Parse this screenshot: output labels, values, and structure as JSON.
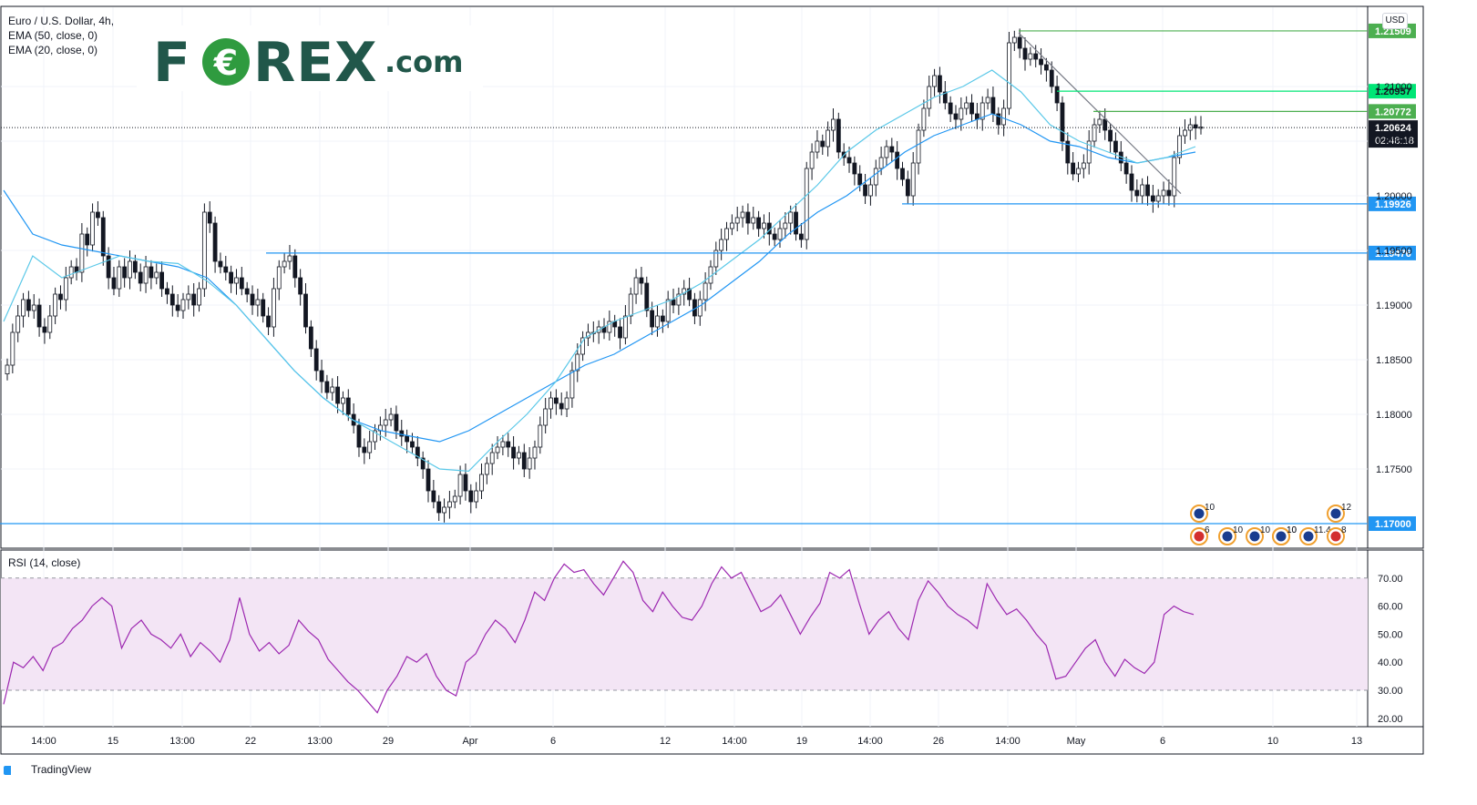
{
  "legend": {
    "symbol": "Euro / U.S. Dollar, 4h,",
    "ema50": "EMA (50, close, 0)",
    "ema20": "EMA (20, close, 0)"
  },
  "logo": {
    "brand_left": "F",
    "brand_right": "REX",
    "euro_glyph": "€",
    "dotcom": ".com"
  },
  "currency_badge": "USD",
  "rsi_legend": "RSI (14, close)",
  "footer": {
    "brand": "TradingView"
  },
  "colors": {
    "candle": "#131722",
    "ema20": "#5ac8e8",
    "ema50": "#2196f3",
    "support": "#2196f3",
    "resistance": "#4caf50",
    "resistance_bright": "#00e676",
    "trendline": "#787b86",
    "rsi_line": "#9c27b0",
    "rsi_band": "#f3e5f5"
  },
  "chart_data": [
    {
      "type": "candlestick",
      "title": "Euro / U.S. Dollar, 4h,",
      "ylabel": "USD",
      "ylim": [
        1.1687,
        1.2169
      ],
      "y_ticks": [
        1.175,
        1.18,
        1.185,
        1.19,
        1.195,
        1.2,
        1.205,
        1.21
      ],
      "y_tick_labels": [
        "1.17500",
        "1.18000",
        "1.18500",
        "1.19000",
        "1.19500",
        "1.20000",
        "1.20500",
        "1.21000"
      ],
      "x_tick_labels": [
        "14:00",
        "15",
        "13:00",
        "22",
        "13:00",
        "29",
        "Apr",
        "6",
        "12",
        "14:00",
        "19",
        "14:00",
        "26",
        "14:00",
        "May",
        "6",
        "10",
        "13"
      ],
      "close_series": [
        1.1845,
        1.1875,
        1.189,
        1.1905,
        1.1895,
        1.19,
        1.188,
        1.1875,
        1.189,
        1.191,
        1.1905,
        1.1925,
        1.1935,
        1.193,
        1.1965,
        1.1955,
        1.1985,
        1.198,
        1.1945,
        1.1925,
        1.1915,
        1.1935,
        1.1925,
        1.194,
        1.193,
        1.192,
        1.1935,
        1.1925,
        1.193,
        1.1915,
        1.191,
        1.19,
        1.1895,
        1.1905,
        1.191,
        1.19,
        1.1915,
        1.1985,
        1.1975,
        1.194,
        1.1935,
        1.193,
        1.192,
        1.1925,
        1.1915,
        1.191,
        1.19,
        1.1905,
        1.189,
        1.188,
        1.1915,
        1.1935,
        1.194,
        1.1945,
        1.1925,
        1.191,
        1.188,
        1.186,
        1.184,
        1.183,
        1.182,
        1.1825,
        1.181,
        1.1815,
        1.18,
        1.179,
        1.177,
        1.1765,
        1.1775,
        1.1785,
        1.179,
        1.1795,
        1.18,
        1.1785,
        1.178,
        1.1775,
        1.177,
        1.176,
        1.175,
        1.173,
        1.172,
        1.171,
        1.1715,
        1.172,
        1.1725,
        1.1745,
        1.173,
        1.172,
        1.173,
        1.1745,
        1.1755,
        1.1765,
        1.177,
        1.1775,
        1.177,
        1.176,
        1.1765,
        1.175,
        1.176,
        1.177,
        1.179,
        1.1805,
        1.1815,
        1.181,
        1.1805,
        1.1815,
        1.184,
        1.1855,
        1.187,
        1.1875,
        1.1875,
        1.188,
        1.1875,
        1.1885,
        1.188,
        1.187,
        1.189,
        1.191,
        1.1925,
        1.192,
        1.1895,
        1.188,
        1.189,
        1.1885,
        1.1905,
        1.19,
        1.191,
        1.1915,
        1.1905,
        1.189,
        1.1905,
        1.192,
        1.1935,
        1.195,
        1.196,
        1.197,
        1.1975,
        1.198,
        1.1985,
        1.1975,
        1.198,
        1.197,
        1.1975,
        1.1965,
        1.196,
        1.197,
        1.1975,
        1.1985,
        1.1965,
        1.196,
        1.2025,
        1.204,
        1.205,
        1.2045,
        1.206,
        1.207,
        1.204,
        1.2035,
        1.203,
        1.202,
        1.201,
        1.2,
        1.201,
        1.2025,
        1.2035,
        1.2045,
        1.204,
        1.2025,
        1.2015,
        1.2,
        1.203,
        1.206,
        1.208,
        1.21,
        1.211,
        1.2095,
        1.2085,
        1.2075,
        1.207,
        1.208,
        1.2085,
        1.2075,
        1.207,
        1.2085,
        1.209,
        1.2075,
        1.2065,
        1.208,
        1.214,
        1.2145,
        1.2135,
        1.2125,
        1.213,
        1.2125,
        1.212,
        1.2115,
        1.21,
        1.2085,
        1.205,
        1.203,
        1.202,
        1.2025,
        1.203,
        1.205,
        1.2065,
        1.207,
        1.206,
        1.205,
        1.204,
        1.203,
        1.202,
        1.2005,
        1.2,
        1.201,
        1.2,
        1.1995,
        1.2,
        1.2005,
        1.2,
        1.2035,
        1.2055,
        1.206,
        1.2065,
        1.2062,
        1.2063
      ],
      "ema20": [
        1.1885,
        1.1945,
        1.1925,
        1.1935,
        1.1945,
        1.194,
        1.1938,
        1.1922,
        1.19,
        1.187,
        1.184,
        1.1815,
        1.1795,
        1.178,
        1.1765,
        1.175,
        1.1748,
        1.1775,
        1.18,
        1.183,
        1.187,
        1.1885,
        1.1895,
        1.1905,
        1.192,
        1.194,
        1.196,
        1.1985,
        1.201,
        1.204,
        1.206,
        1.2075,
        1.209,
        1.21,
        1.2115,
        1.2095,
        1.2065,
        1.205,
        1.204,
        1.203,
        1.2035,
        1.2045
      ],
      "ema50": [
        1.2005,
        1.1965,
        1.1955,
        1.195,
        1.1945,
        1.194,
        1.1935,
        1.1925,
        1.19,
        1.187,
        1.184,
        1.1815,
        1.1795,
        1.1785,
        1.178,
        1.1775,
        1.1785,
        1.18,
        1.1815,
        1.183,
        1.1845,
        1.1855,
        1.187,
        1.1885,
        1.19,
        1.192,
        1.194,
        1.1965,
        1.1985,
        1.2,
        1.202,
        1.204,
        1.2055,
        1.2065,
        1.2075,
        1.2065,
        1.205,
        1.2045,
        1.2035,
        1.203,
        1.2035,
        1.204
      ],
      "trendline": {
        "from": [
          1.2149,
          "Apr 28 14:00"
        ],
        "to": [
          1.2002,
          "May 6"
        ]
      },
      "levels": [
        {
          "value": 1.21509,
          "label": "1.21509",
          "kind": "resistance"
        },
        {
          "value": 1.20957,
          "label": "1.20957",
          "kind": "resistance_bright"
        },
        {
          "value": 1.20772,
          "label": "1.20772",
          "kind": "resistance"
        },
        {
          "value": 1.19926,
          "label": "1.19926",
          "kind": "support"
        },
        {
          "value": 1.19476,
          "label": "1.19476",
          "kind": "support"
        },
        {
          "value": 1.17,
          "label": "1.17000",
          "kind": "support"
        }
      ],
      "last_price": {
        "value": 1.20624,
        "label": "1.20624",
        "countdown": "02:48:18"
      },
      "event_markers": [
        "10",
        "6",
        "10",
        "10",
        "10",
        "10",
        "11.4",
        "12",
        "8"
      ]
    },
    {
      "type": "line",
      "title": "RSI (14, close)",
      "ylim": [
        17,
        80
      ],
      "y_ticks": [
        20,
        30,
        40,
        50,
        60,
        70
      ],
      "y_tick_labels": [
        "20.00",
        "30.00",
        "40.00",
        "50.00",
        "60.00",
        "70.00"
      ],
      "band": [
        30,
        70
      ],
      "values": [
        25,
        40,
        38,
        42,
        37,
        45,
        47,
        52,
        55,
        60,
        63,
        60,
        45,
        52,
        55,
        50,
        48,
        45,
        50,
        42,
        47,
        44,
        40,
        48,
        63,
        50,
        44,
        47,
        43,
        46,
        55,
        51,
        48,
        41,
        37,
        33,
        30,
        26,
        22,
        30,
        35,
        42,
        40,
        43,
        35,
        30,
        28,
        40,
        43,
        50,
        55,
        52,
        47,
        55,
        65,
        62,
        70,
        75,
        72,
        73,
        68,
        64,
        70,
        76,
        72,
        62,
        58,
        65,
        60,
        56,
        55,
        60,
        68,
        74,
        70,
        72,
        65,
        58,
        60,
        64,
        57,
        50,
        56,
        61,
        72,
        70,
        73,
        61,
        50,
        55,
        58,
        52,
        48,
        62,
        69,
        65,
        60,
        57,
        55,
        52,
        68,
        62,
        57,
        59,
        55,
        50,
        46,
        34,
        35,
        40,
        45,
        48,
        40,
        35,
        41,
        38,
        36,
        40,
        57,
        60,
        58,
        57
      ]
    }
  ]
}
